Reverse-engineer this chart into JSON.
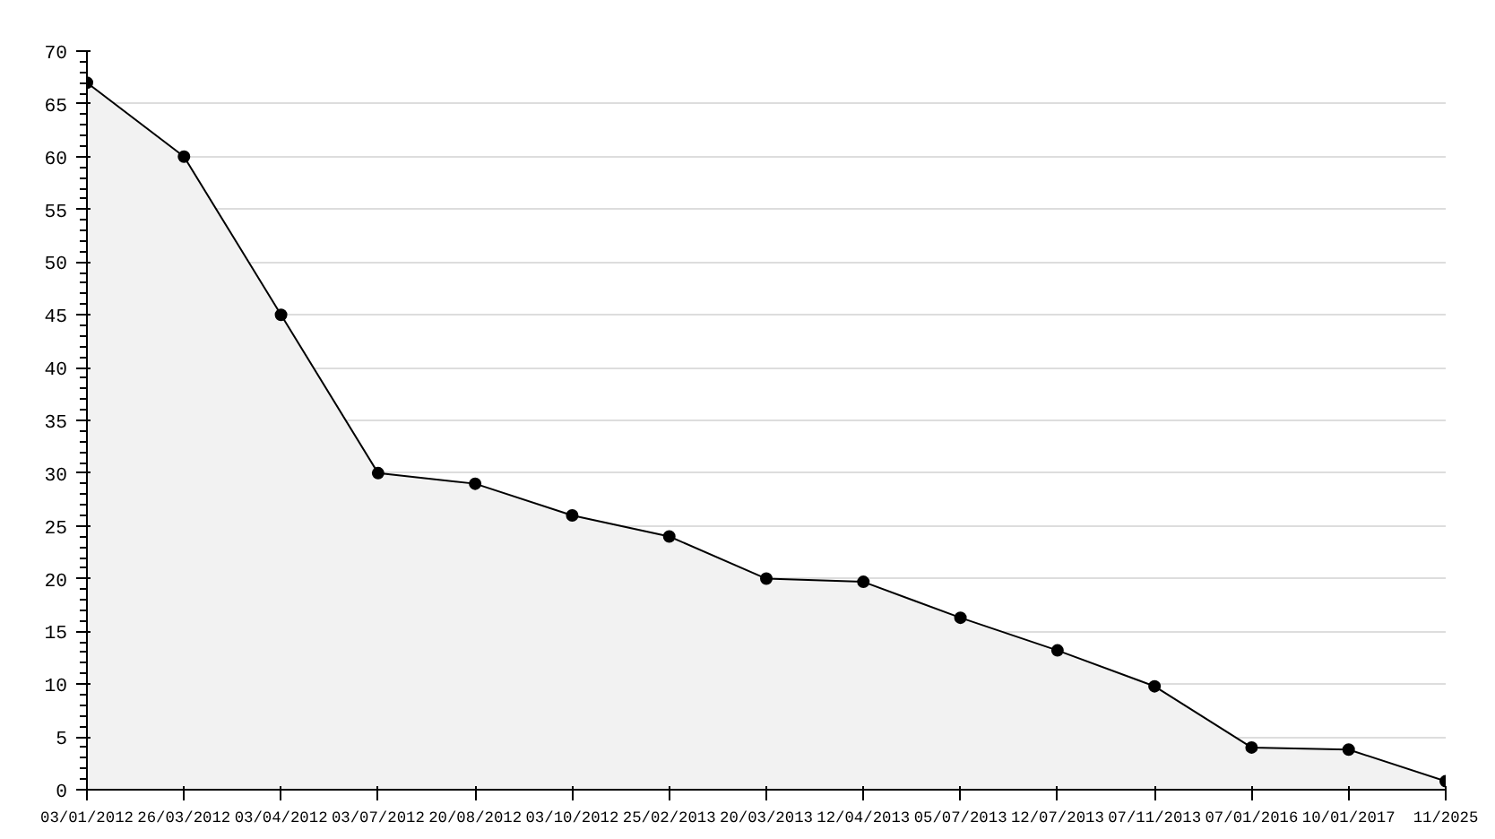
{
  "chart_data": {
    "type": "area",
    "categories": [
      "03/01/2012",
      "26/03/2012",
      "03/04/2012",
      "03/07/2012",
      "20/08/2012",
      "03/10/2012",
      "25/02/2013",
      "20/03/2013",
      "12/04/2013",
      "05/07/2013",
      "12/07/2013",
      "07/11/2013",
      "07/01/2016",
      "10/01/2017",
      "11/2025"
    ],
    "series": [
      {
        "color": "#000000",
        "values": [
          67,
          60,
          45,
          30,
          29,
          26,
          24,
          20,
          19.7,
          16.3,
          13.2,
          9.8,
          4,
          3.8,
          0.8
        ]
      }
    ],
    "ylim": [
      0,
      70
    ],
    "yticks": [
      0,
      5,
      10,
      15,
      20,
      25,
      30,
      35,
      40,
      45,
      50,
      55,
      60,
      65,
      70
    ],
    "grid": "y",
    "marker": "circle"
  }
}
